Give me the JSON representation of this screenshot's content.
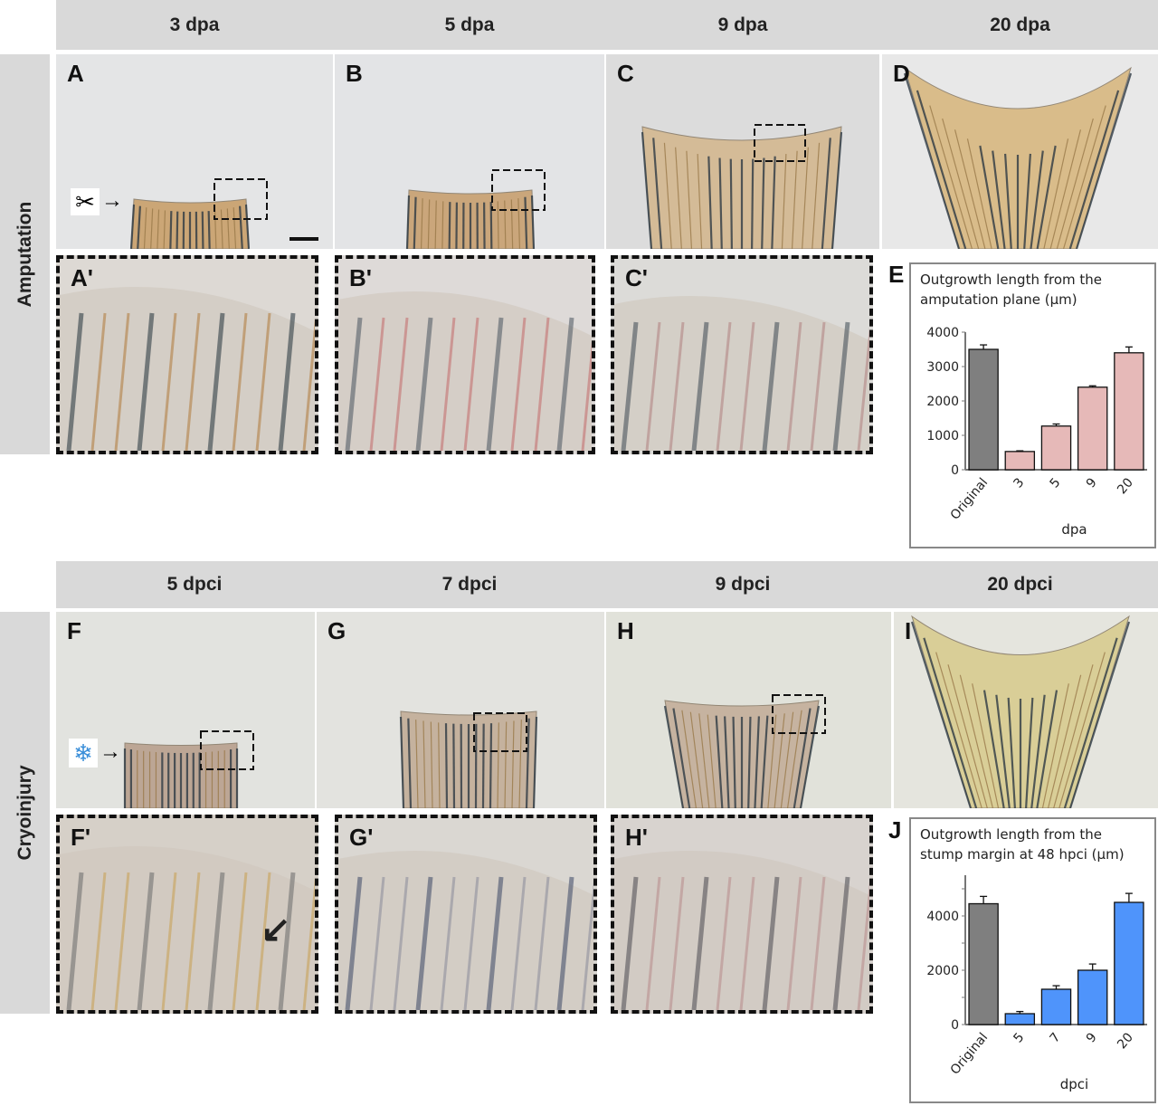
{
  "top_headers": [
    "3 dpa",
    "5 dpa",
    "9 dpa",
    "20 dpa"
  ],
  "bottom_headers": [
    "5 dpci",
    "7 dpci",
    "9 dpci",
    "20 dpci"
  ],
  "row_labels": {
    "top": "Amputation",
    "bottom": "Cryoinjury"
  },
  "panels": {
    "A": "A",
    "B": "B",
    "C": "C",
    "D": "D",
    "A2": "A'",
    "B2": "B'",
    "C2": "C'",
    "E": "E",
    "F": "F",
    "G": "G",
    "H": "H",
    "I": "I",
    "F2": "F'",
    "G2": "G'",
    "H2": "H'",
    "J": "J"
  },
  "icons": {
    "amputation": "scissors-icon",
    "cryo": "snowflake-icon",
    "arrow": "arrow-right-icon"
  },
  "colors": {
    "gray_bar": "#7f7f7f",
    "pink_bar": "#e6b9b8",
    "blue_bar": "#4f94fb",
    "header_bg": "#d9d9d9"
  },
  "chart_data": [
    {
      "type": "bar",
      "panel": "E",
      "title_lines": [
        "Outgrowth length from the",
        "amputation plane (μm)"
      ],
      "categories": [
        "Original",
        "3",
        "5",
        "9",
        "20"
      ],
      "values": [
        3500,
        530,
        1270,
        2400,
        3400
      ],
      "errors": [
        130,
        20,
        60,
        40,
        170
      ],
      "xlabel": "dpa",
      "ylabel": "",
      "ylim": [
        0,
        4000
      ],
      "yticks": [
        0,
        1000,
        2000,
        3000,
        4000
      ],
      "ytick_labels": [
        "0",
        "1000",
        "2000",
        "3000",
        "4000"
      ],
      "grid": false
    },
    {
      "type": "bar",
      "panel": "J",
      "title_lines": [
        "Outgrowth length from the",
        "stump margin at 48 hpci (μm)"
      ],
      "categories": [
        "Original",
        "5",
        "7",
        "9",
        "20"
      ],
      "values": [
        4450,
        400,
        1300,
        2000,
        4500
      ],
      "errors": [
        270,
        80,
        130,
        230,
        330
      ],
      "xlabel": "dpci",
      "ylabel": "",
      "ylim": [
        0,
        5500
      ],
      "yticks": [
        0,
        1000,
        2000,
        3000,
        4000,
        5000
      ],
      "ytick_labels": [
        "0",
        "",
        "2000",
        "",
        "4000",
        ""
      ],
      "grid": false
    }
  ]
}
